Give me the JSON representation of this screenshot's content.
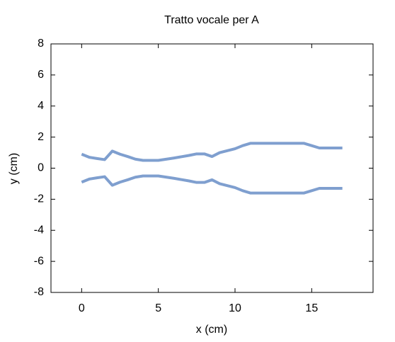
{
  "chart_data": {
    "type": "line",
    "title": "Tratto vocale per A",
    "x_label": "x (cm)",
    "y_label": "y (cm)",
    "x": [
      0,
      0.5,
      1,
      1.5,
      2,
      2.5,
      3,
      3.5,
      4,
      5,
      6,
      7,
      7.5,
      8,
      8.5,
      9,
      10,
      10.5,
      11,
      12,
      13,
      14,
      14.5,
      15,
      15.5,
      16,
      17
    ],
    "series": [
      {
        "color": "#7f9fcf",
        "values": [
          0.9,
          0.7,
          0.62,
          0.55,
          1.1,
          0.9,
          0.75,
          0.58,
          0.5,
          0.5,
          0.65,
          0.82,
          0.92,
          0.92,
          0.75,
          1.0,
          1.25,
          1.45,
          1.6,
          1.6,
          1.6,
          1.6,
          1.6,
          1.45,
          1.3,
          1.3,
          1.3
        ]
      },
      {
        "color": "#7f9fcf",
        "values": [
          -0.9,
          -0.7,
          -0.62,
          -0.55,
          -1.1,
          -0.9,
          -0.75,
          -0.58,
          -0.5,
          -0.5,
          -0.65,
          -0.82,
          -0.92,
          -0.92,
          -0.75,
          -1.0,
          -1.25,
          -1.45,
          -1.6,
          -1.6,
          -1.6,
          -1.6,
          -1.6,
          -1.45,
          -1.3,
          -1.3,
          -1.3
        ]
      }
    ],
    "xlim": [
      -2,
      19
    ],
    "xticks": [
      0,
      5,
      10,
      15
    ],
    "ylim": [
      -8,
      8
    ],
    "yticks": [
      -8,
      -6,
      -4,
      -2,
      0,
      2,
      4,
      6,
      8
    ]
  }
}
